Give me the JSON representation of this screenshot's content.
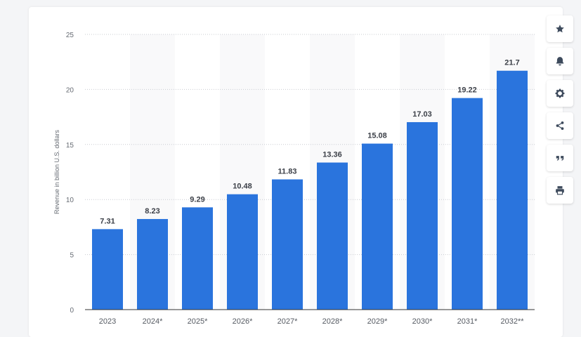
{
  "chart_data": {
    "type": "bar",
    "categories": [
      "2023",
      "2024*",
      "2025*",
      "2026*",
      "2027*",
      "2028*",
      "2029*",
      "2030*",
      "2031*",
      "2032**"
    ],
    "values": [
      7.31,
      8.23,
      9.29,
      10.48,
      11.83,
      13.36,
      15.08,
      17.03,
      19.22,
      21.7
    ],
    "value_labels": [
      "7.31",
      "8.23",
      "9.29",
      "10.48",
      "11.83",
      "13.36",
      "15.08",
      "17.03",
      "19.22",
      "21.7"
    ],
    "ylabel": "Revenue in billion U.S. dollars",
    "xlabel": "",
    "ylim": [
      0,
      25
    ],
    "yticks": [
      0,
      5,
      10,
      15,
      20,
      25
    ],
    "ytick_labels": [
      "0",
      "5",
      "10",
      "15",
      "20",
      "25"
    ],
    "grid": true,
    "bar_color": "#2a74dd",
    "alt_band_color": "#f9f9fa"
  },
  "toolbar": {
    "buttons": [
      {
        "name": "star-icon",
        "label": "Favorite"
      },
      {
        "name": "bell-icon",
        "label": "Notifications"
      },
      {
        "name": "gear-icon",
        "label": "Settings"
      },
      {
        "name": "share-icon",
        "label": "Share"
      },
      {
        "name": "quote-icon",
        "label": "Cite"
      },
      {
        "name": "print-icon",
        "label": "Print"
      }
    ],
    "icon_color": "#3d4a5c"
  }
}
